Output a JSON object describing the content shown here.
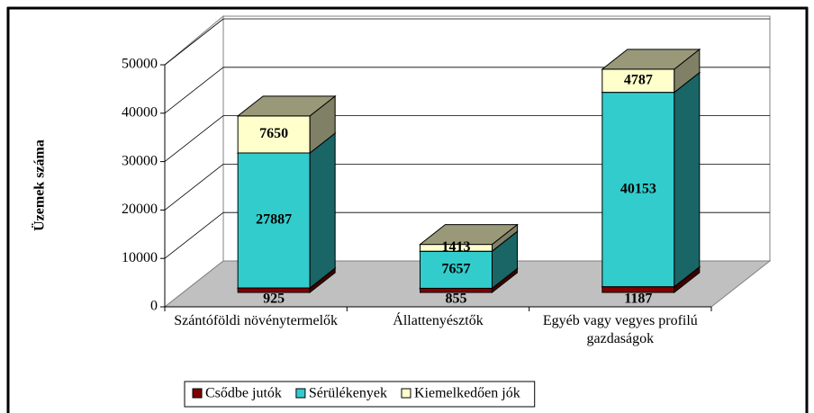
{
  "chart_data": {
    "type": "bar3d_stacked",
    "y_label": "Üzemek száma",
    "categories": [
      "Szántóföldi növénytermelők",
      "Állattenyésztők",
      "Egyéb vagy vegyes profilú gazdaságok"
    ],
    "series": [
      {
        "name": "Csődbe jutók",
        "color": "#800000",
        "values": [
          925,
          855,
          1187
        ]
      },
      {
        "name": "Sérülékenyek",
        "color": "#33CCCC",
        "values": [
          27887,
          7657,
          40153
        ]
      },
      {
        "name": "Kiemelkedően jók",
        "color": "#FFFFCC",
        "values": [
          7650,
          1413,
          4787
        ]
      }
    ],
    "ylim": [
      0,
      50000
    ],
    "yticks": [
      0,
      10000,
      20000,
      30000,
      40000,
      50000
    ],
    "grid": true,
    "legend": "bottom"
  }
}
